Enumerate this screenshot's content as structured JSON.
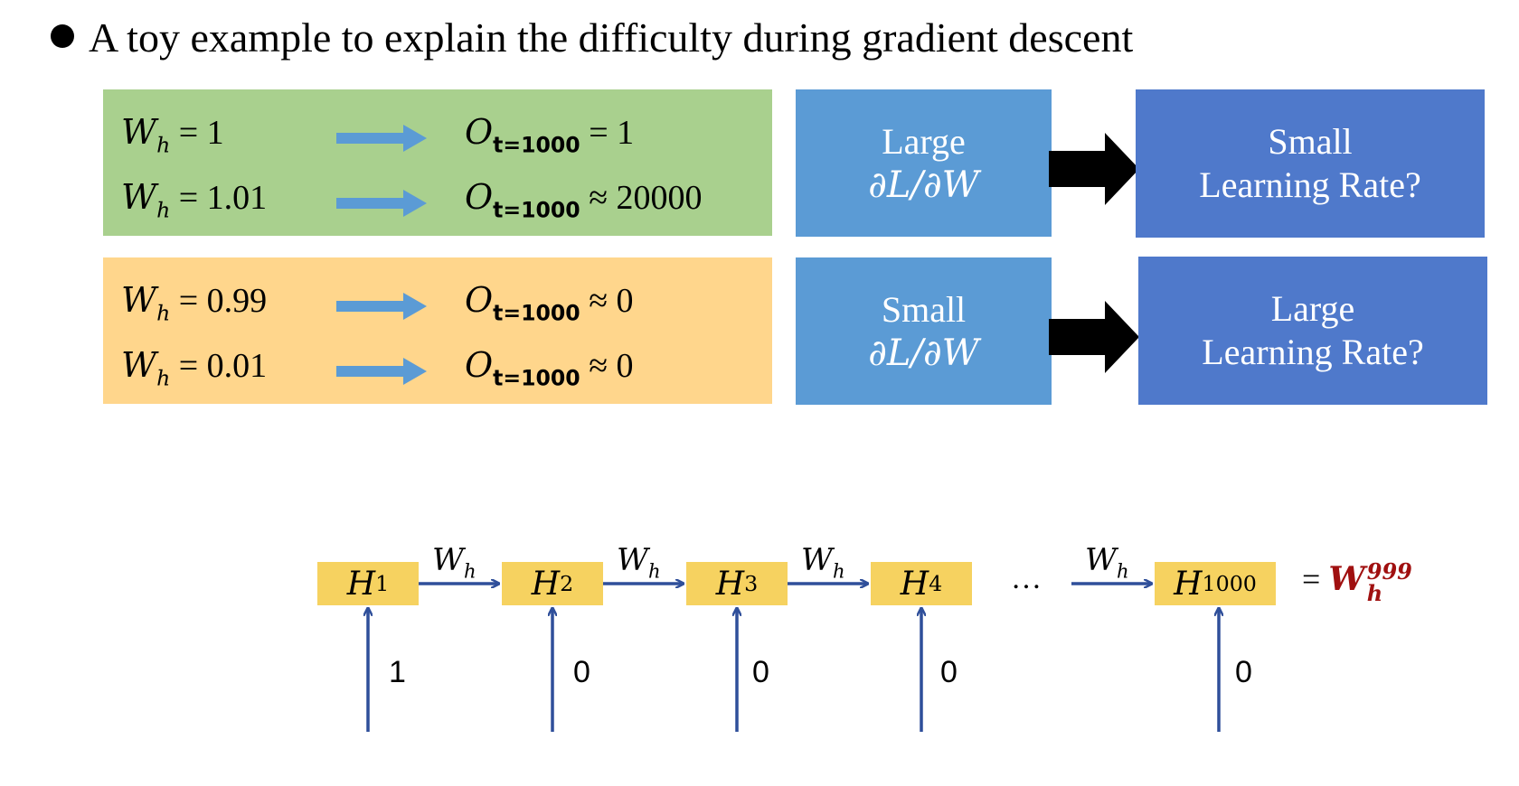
{
  "title": "A toy example to explain the difficulty during gradient descent",
  "green_panel": {
    "rows": [
      {
        "w_value": "1",
        "relation": "=",
        "o_value": "1"
      },
      {
        "w_value": "1.01",
        "relation": "≈",
        "o_value": "20000"
      }
    ]
  },
  "orange_panel": {
    "rows": [
      {
        "w_value": "0.99",
        "relation": "≈",
        "o_value": "0"
      },
      {
        "w_value": "0.01",
        "relation": "≈",
        "o_value": "0"
      }
    ]
  },
  "symbols": {
    "w": "W",
    "w_sub": "h",
    "o": "O",
    "o_sub": "t=1000",
    "eq": "="
  },
  "gradient_boxes": [
    {
      "line1": "Large",
      "line2": "∂L/∂W"
    },
    {
      "line1": "Small",
      "line2": "∂L/∂W"
    }
  ],
  "lr_boxes": [
    {
      "line1": "Small",
      "line2": "Learning Rate?"
    },
    {
      "line1": "Large",
      "line2": "Learning Rate?"
    }
  ],
  "chain": {
    "nodes": [
      {
        "sub": "1",
        "input": "1"
      },
      {
        "sub": "2",
        "input": "0"
      },
      {
        "sub": "3",
        "input": "0"
      },
      {
        "sub": "4",
        "input": "0"
      },
      {
        "sub": "1000",
        "input": "0"
      }
    ],
    "node_symbol": "H",
    "edge_label": "W",
    "edge_label_sub": "h",
    "ellipsis": "…",
    "result_eq": "=",
    "result_base": "W",
    "result_sub": "h",
    "result_sup": "999"
  },
  "colors": {
    "green": "#a9d08e",
    "orange": "#ffd68c",
    "blue_mid": "#5b9bd5",
    "blue_right": "#4f79cb",
    "node": "#f6d260",
    "arrow": "#2f4f9a",
    "result": "#a01010"
  }
}
